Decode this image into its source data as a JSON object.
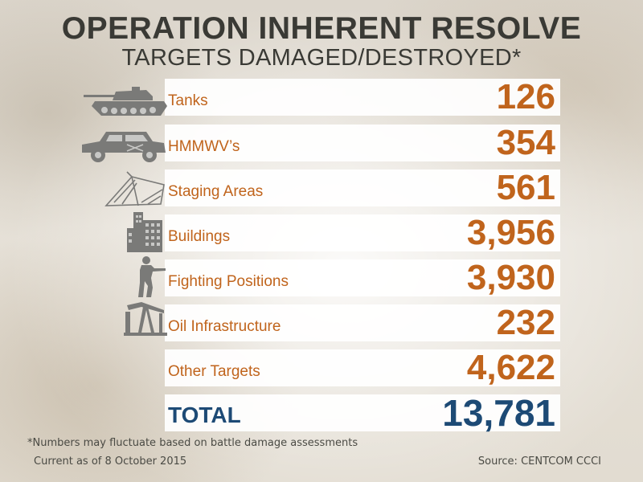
{
  "title": "OPERATION INHERENT RESOLVE",
  "subtitle": "TARGETS DAMAGED/DESTROYED*",
  "colors": {
    "value": "#c0641c",
    "total": "#1d4a75",
    "title": "#3a3a35",
    "icon": "#7a7a78"
  },
  "chart_data": {
    "type": "table",
    "title": "OPERATION INHERENT RESOLVE",
    "subtitle": "TARGETS DAMAGED/DESTROYED*",
    "categories": [
      "Tanks",
      "HMMWV’s",
      "Staging Areas",
      "Buildings",
      "Fighting Positions",
      "Oil Infrastructure",
      "Other Targets"
    ],
    "values": [
      126,
      354,
      561,
      3956,
      3930,
      232,
      4622
    ],
    "rows": [
      {
        "label": "Tanks",
        "value": "126",
        "icon": "tank-icon"
      },
      {
        "label": "HMMWV’s",
        "value": "354",
        "icon": "hmmwv-icon"
      },
      {
        "label": "Staging Areas",
        "value": "561",
        "icon": "tent-icon"
      },
      {
        "label": "Buildings",
        "value": "3,956",
        "icon": "building-icon"
      },
      {
        "label": "Fighting Positions",
        "value": "3,930",
        "icon": "soldier-icon"
      },
      {
        "label": "Oil Infrastructure",
        "value": "232",
        "icon": "oil-pump-icon"
      },
      {
        "label": "Other Targets",
        "value": "4,622",
        "icon": ""
      }
    ],
    "total": {
      "label": "TOTAL",
      "value": "13,781"
    }
  },
  "footer": {
    "note": "*Numbers may fluctuate based on battle damage assessments",
    "as_of": "Current as of 8 October 2015",
    "source": "Source: CENTCOM CCCI"
  }
}
